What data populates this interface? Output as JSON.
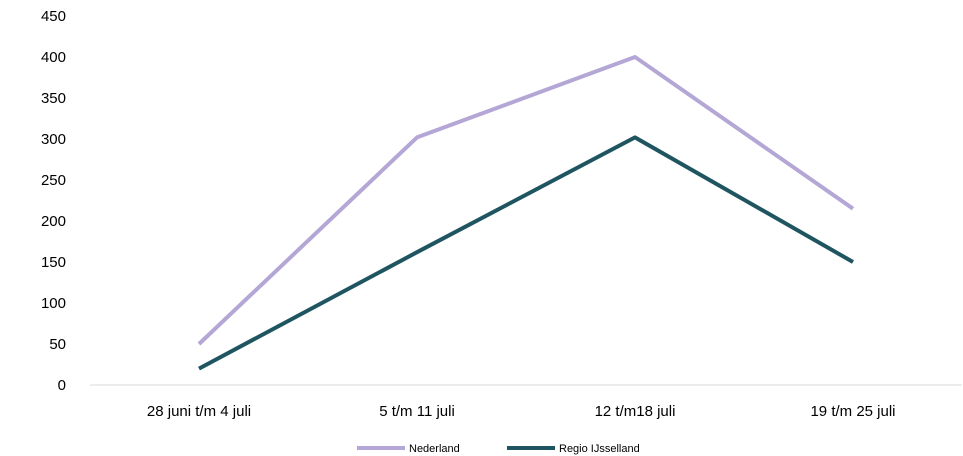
{
  "chart_data": {
    "type": "line",
    "title": "",
    "xlabel": "",
    "ylabel": "",
    "categories": [
      "28 juni t/m 4 juli",
      "5 t/m 11 juli",
      "12 t/m18 juli",
      "19 t/m 25 juli"
    ],
    "series": [
      {
        "name": "Nederland",
        "values": [
          50,
          302,
          400,
          215
        ],
        "color": "#b4a7d6"
      },
      {
        "name": "Regio IJsselland",
        "values": [
          20,
          162,
          302,
          150
        ],
        "color": "#1f5561"
      }
    ],
    "yticks": [
      0,
      50,
      100,
      150,
      200,
      250,
      300,
      350,
      400,
      450
    ],
    "ylim": [
      0,
      450
    ],
    "grid": false,
    "legend_position": "bottom"
  }
}
